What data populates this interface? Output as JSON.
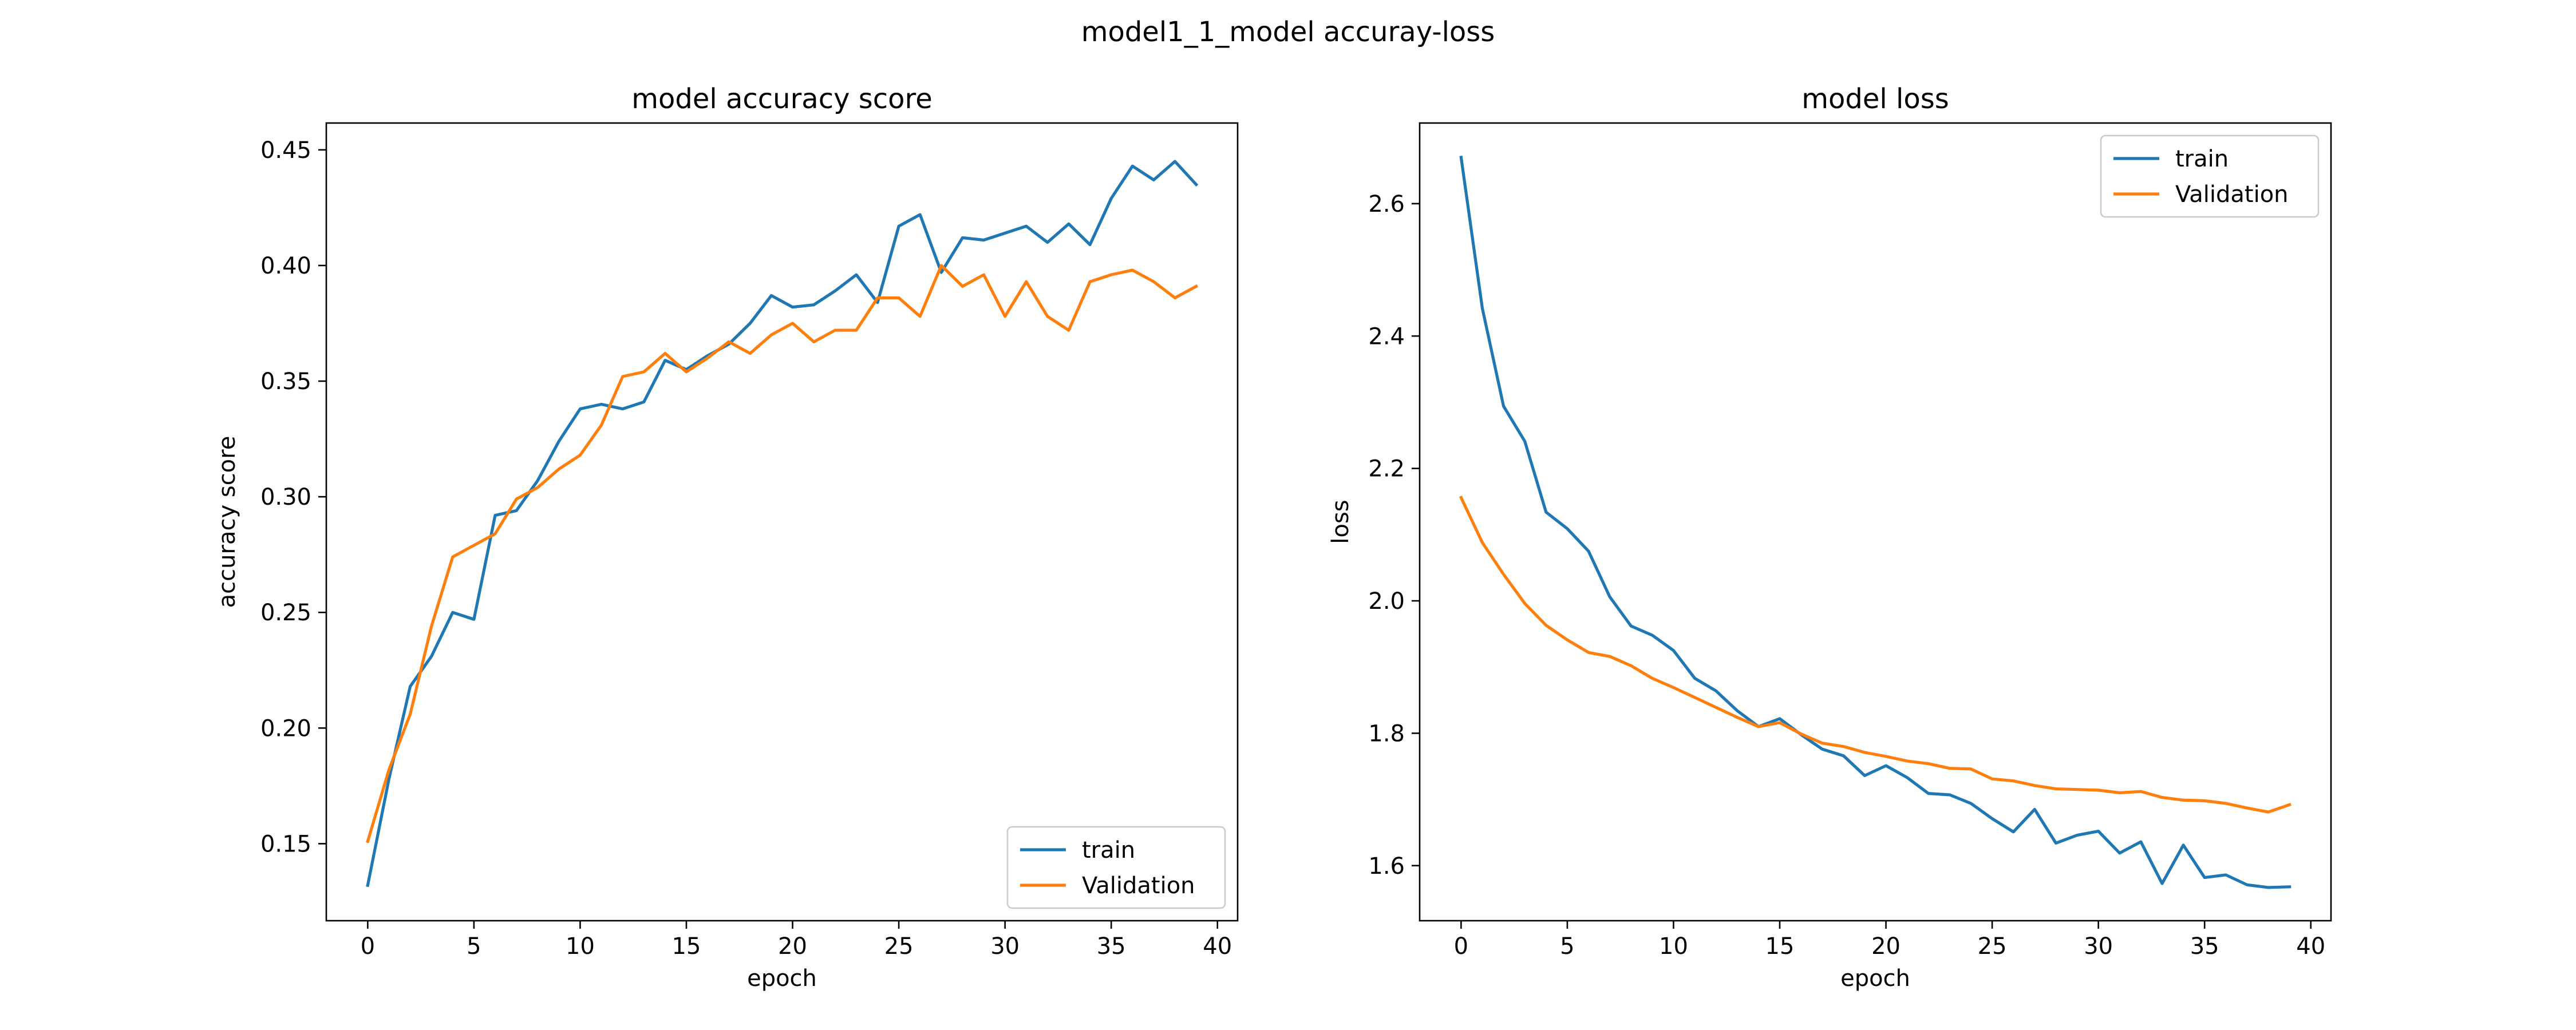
{
  "figure": {
    "suptitle": "model1_1_model accuray-loss"
  },
  "colors": {
    "train": "#1f77b4",
    "validation": "#ff7f0e"
  },
  "chart_data": [
    {
      "type": "line",
      "title": "model accuracy score",
      "xlabel": "epoch",
      "ylabel": "accuracy score",
      "xlim": [
        -1.95,
        40.95
      ],
      "ylim": [
        0.1167,
        0.4616
      ],
      "xticks": [
        0,
        5,
        10,
        15,
        20,
        25,
        30,
        35,
        40
      ],
      "yticks": [
        0.15,
        0.2,
        0.25,
        0.3,
        0.35,
        0.4,
        0.45
      ],
      "ytick_labels": [
        "0.15",
        "0.20",
        "0.25",
        "0.30",
        "0.35",
        "0.40",
        "0.45"
      ],
      "grid": false,
      "legend_position": "lower-right",
      "x": [
        0,
        1,
        2,
        3,
        4,
        5,
        6,
        7,
        8,
        9,
        10,
        11,
        12,
        13,
        14,
        15,
        16,
        17,
        18,
        19,
        20,
        21,
        22,
        23,
        24,
        25,
        26,
        27,
        28,
        29,
        30,
        31,
        32,
        33,
        34,
        35,
        36,
        37,
        38,
        39
      ],
      "series": [
        {
          "name": "train",
          "values": [
            0.132,
            0.178,
            0.218,
            0.231,
            0.25,
            0.247,
            0.292,
            0.294,
            0.307,
            0.324,
            0.338,
            0.34,
            0.338,
            0.341,
            0.359,
            0.355,
            0.361,
            0.366,
            0.375,
            0.387,
            0.382,
            0.383,
            0.389,
            0.396,
            0.384,
            0.417,
            0.422,
            0.397,
            0.412,
            0.411,
            0.414,
            0.417,
            0.41,
            0.418,
            0.409,
            0.429,
            0.443,
            0.437,
            0.445,
            0.435
          ]
        },
        {
          "name": "Validation",
          "values": [
            0.151,
            0.182,
            0.206,
            0.244,
            0.274,
            0.279,
            0.284,
            0.299,
            0.304,
            0.312,
            0.318,
            0.331,
            0.352,
            0.354,
            0.362,
            0.354,
            0.36,
            0.367,
            0.362,
            0.37,
            0.375,
            0.367,
            0.372,
            0.372,
            0.386,
            0.386,
            0.378,
            0.4,
            0.391,
            0.396,
            0.378,
            0.393,
            0.378,
            0.372,
            0.393,
            0.396,
            0.398,
            0.393,
            0.386,
            0.391
          ]
        }
      ]
    },
    {
      "type": "line",
      "title": "model loss",
      "xlabel": "epoch",
      "ylabel": "loss",
      "xlim": [
        -1.95,
        40.95
      ],
      "ylim": [
        1.5168,
        2.7218
      ],
      "xticks": [
        0,
        5,
        10,
        15,
        20,
        25,
        30,
        35,
        40
      ],
      "yticks": [
        1.6,
        1.8,
        2.0,
        2.2,
        2.4,
        2.6
      ],
      "ytick_labels": [
        "1.6",
        "1.8",
        "2.0",
        "2.2",
        "2.4",
        "2.6"
      ],
      "grid": false,
      "legend_position": "upper-right",
      "x": [
        0,
        1,
        2,
        3,
        4,
        5,
        6,
        7,
        8,
        9,
        10,
        11,
        12,
        13,
        14,
        15,
        16,
        17,
        18,
        19,
        20,
        21,
        22,
        23,
        24,
        25,
        26,
        27,
        28,
        29,
        30,
        31,
        32,
        33,
        34,
        35,
        36,
        37,
        38,
        39
      ],
      "series": [
        {
          "name": "train",
          "values": [
            2.67,
            2.442,
            2.294,
            2.241,
            2.134,
            2.109,
            2.075,
            2.006,
            1.962,
            1.948,
            1.925,
            1.883,
            1.864,
            1.834,
            1.81,
            1.822,
            1.798,
            1.776,
            1.766,
            1.736,
            1.751,
            1.733,
            1.709,
            1.707,
            1.694,
            1.671,
            1.651,
            1.685,
            1.634,
            1.646,
            1.652,
            1.619,
            1.636,
            1.573,
            1.631,
            1.582,
            1.586,
            1.571,
            1.567,
            1.568
          ]
        },
        {
          "name": "Validation",
          "values": [
            2.156,
            2.088,
            2.04,
            1.996,
            1.963,
            1.941,
            1.922,
            1.916,
            1.902,
            1.883,
            1.869,
            1.854,
            1.839,
            1.824,
            1.81,
            1.816,
            1.799,
            1.785,
            1.78,
            1.771,
            1.765,
            1.758,
            1.754,
            1.747,
            1.746,
            1.731,
            1.728,
            1.721,
            1.716,
            1.715,
            1.714,
            1.71,
            1.712,
            1.703,
            1.699,
            1.698,
            1.694,
            1.687,
            1.681,
            1.692
          ]
        }
      ]
    }
  ]
}
